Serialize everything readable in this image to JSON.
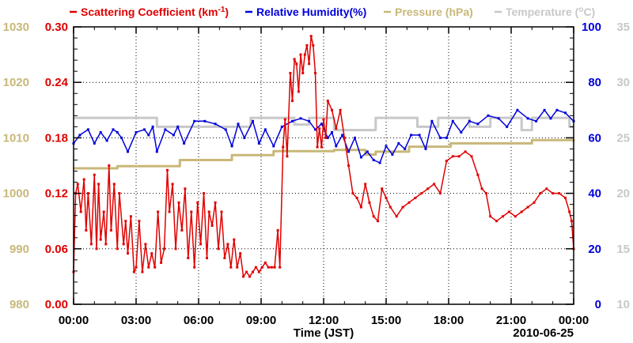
{
  "chart_data": {
    "type": "line",
    "title": "",
    "xlabel": "Time (JST)",
    "date_label": "2010-06-25",
    "x_ticks": [
      "00:00",
      "03:00",
      "06:00",
      "09:00",
      "12:00",
      "15:00",
      "18:00",
      "21:00",
      "00:00"
    ],
    "xlim_hours": [
      0,
      24
    ],
    "grid": true,
    "legend": [
      {
        "label": "Scattering Coefficient (km",
        "sup": "-1",
        "suffix": ")",
        "color": "#e00000"
      },
      {
        "label": "Relative Humidity(%)",
        "color": "#0000dd"
      },
      {
        "label": "Pressure (hPa)",
        "color": "#c8b878"
      },
      {
        "label": "Temperature (",
        "sup": "o",
        "suffix": "C)",
        "color": "#c8c8c8"
      }
    ],
    "axes": {
      "pressure": {
        "range": [
          980,
          1030
        ],
        "ticks": [
          "980",
          "990",
          "1000",
          "1010",
          "1020",
          "1030"
        ],
        "color": "#c8b878"
      },
      "scattering": {
        "range": [
          0,
          0.3
        ],
        "ticks": [
          "0.00",
          "0.06",
          "0.12",
          "0.18",
          "0.24",
          "0.30"
        ],
        "color": "#e00000"
      },
      "humidity": {
        "range": [
          0,
          100
        ],
        "ticks": [
          "0",
          "20",
          "40",
          "60",
          "80",
          "100"
        ],
        "color": "#0000dd"
      },
      "temperature": {
        "range": [
          10,
          35
        ],
        "ticks": [
          "10",
          "15",
          "20",
          "25",
          "30",
          "35"
        ],
        "color": "#c8c8c8"
      }
    },
    "series": [
      {
        "name": "Temperature",
        "axis": "temperature",
        "color": "#c8c8c8",
        "x": [
          0,
          1.0,
          3.0,
          3.8,
          4.0,
          8.0,
          8.5,
          10.3,
          10.6,
          11.3,
          12.2,
          12.5,
          14.5,
          15.5,
          16.5,
          17.5,
          18.0,
          19.0,
          20.0,
          20.5,
          21.5,
          22.0,
          23.8,
          24
        ],
        "y": [
          26.8,
          26.8,
          26.8,
          26.8,
          26.0,
          26.0,
          26.8,
          26.8,
          26.2,
          26.8,
          26.8,
          25.7,
          26.8,
          26.8,
          26.0,
          26.8,
          26.8,
          26.0,
          26.8,
          26.8,
          25.7,
          26.8,
          26.0,
          26.0
        ]
      },
      {
        "name": "Pressure",
        "axis": "pressure",
        "color": "#c8b878",
        "x": [
          0,
          2.0,
          2.1,
          5.0,
          5.1,
          7.5,
          7.6,
          9.5,
          9.6,
          11.0,
          12.5,
          14.0,
          14.5,
          16.0,
          16.1,
          18.0,
          18.1,
          21.5,
          22.0,
          23.8,
          24
        ],
        "y": [
          1004.5,
          1004.5,
          1004.9,
          1004.9,
          1006.0,
          1006.0,
          1006.9,
          1006.9,
          1007.6,
          1007.6,
          1007.8,
          1007.0,
          1007.5,
          1007.5,
          1008.4,
          1008.4,
          1009.0,
          1009.0,
          1009.6,
          1009.6,
          1009.3
        ]
      },
      {
        "name": "Relative Humidity",
        "axis": "humidity",
        "color": "#0000dd",
        "x": [
          0,
          0.3,
          0.7,
          1.0,
          1.3,
          1.6,
          1.9,
          2.1,
          2.3,
          2.6,
          3.0,
          3.4,
          3.6,
          3.8,
          4.0,
          4.4,
          4.8,
          5.0,
          5.3,
          5.8,
          6.3,
          6.8,
          7.3,
          7.6,
          7.9,
          8.2,
          8.6,
          8.9,
          9.2,
          9.6,
          10.0,
          10.5,
          10.9,
          11.3,
          11.6,
          11.9,
          12.2,
          12.4,
          12.6,
          12.9,
          13.2,
          13.5,
          13.8,
          14.1,
          14.4,
          14.7,
          15.0,
          15.3,
          15.6,
          15.9,
          16.2,
          16.6,
          16.9,
          17.2,
          17.6,
          17.9,
          18.2,
          18.6,
          19.0,
          19.4,
          19.9,
          20.4,
          20.8,
          21.3,
          21.8,
          22.2,
          22.6,
          22.9,
          23.2,
          23.6,
          24
        ],
        "y": [
          58,
          61,
          63,
          58,
          62,
          59,
          63,
          62,
          60,
          55,
          62,
          63,
          61,
          64,
          55,
          63,
          61,
          64,
          58,
          66,
          66,
          65,
          63,
          57,
          65,
          60,
          66,
          58,
          63,
          57,
          64,
          66,
          67,
          66,
          63,
          65,
          60,
          62,
          57,
          61,
          55,
          60,
          53,
          55,
          52,
          51,
          57,
          54,
          58,
          56,
          61,
          61,
          56,
          66,
          60,
          60,
          66,
          62,
          66,
          65,
          68,
          67,
          64,
          70,
          67,
          66,
          70,
          67,
          70,
          69,
          66
        ]
      },
      {
        "name": "Scattering Coefficient",
        "axis": "scattering",
        "color": "#e00000",
        "x": [
          0,
          0.1,
          0.2,
          0.35,
          0.5,
          0.6,
          0.7,
          0.85,
          1.0,
          1.1,
          1.2,
          1.3,
          1.45,
          1.55,
          1.7,
          1.8,
          1.95,
          2.1,
          2.2,
          2.4,
          2.5,
          2.6,
          2.75,
          2.9,
          3.0,
          3.15,
          3.3,
          3.45,
          3.6,
          3.75,
          3.9,
          4.05,
          4.2,
          4.35,
          4.5,
          4.6,
          4.75,
          4.9,
          5.05,
          5.2,
          5.35,
          5.5,
          5.65,
          5.8,
          5.95,
          6.1,
          6.25,
          6.4,
          6.5,
          6.65,
          6.8,
          6.95,
          7.1,
          7.25,
          7.4,
          7.55,
          7.7,
          7.85,
          8.0,
          8.15,
          8.3,
          8.45,
          8.6,
          8.75,
          8.9,
          9.05,
          9.2,
          9.35,
          9.5,
          9.65,
          9.8,
          9.9,
          10.05,
          10.15,
          10.25,
          10.4,
          10.5,
          10.6,
          10.7,
          10.8,
          10.9,
          11.0,
          11.1,
          11.2,
          11.3,
          11.4,
          11.5,
          11.6,
          11.7,
          11.8,
          11.9,
          12.0,
          12.1,
          12.2,
          12.4,
          12.6,
          12.8,
          13.0,
          13.2,
          13.4,
          13.6,
          13.8,
          14.0,
          14.2,
          14.4,
          14.6,
          14.8,
          15.0,
          15.2,
          15.5,
          15.8,
          16.1,
          16.4,
          16.7,
          17.0,
          17.3,
          17.6,
          17.9,
          18.2,
          18.5,
          18.8,
          19.1,
          19.4,
          19.6,
          19.8,
          20.0,
          20.3,
          20.6,
          20.9,
          21.2,
          21.5,
          21.8,
          22.1,
          22.4,
          22.7,
          23.0,
          23.3,
          23.6,
          23.8,
          23.9,
          24
        ],
        "y": [
          0.035,
          0.12,
          0.13,
          0.1,
          0.135,
          0.08,
          0.12,
          0.065,
          0.14,
          0.06,
          0.13,
          0.07,
          0.1,
          0.065,
          0.15,
          0.08,
          0.13,
          0.06,
          0.12,
          0.065,
          0.09,
          0.055,
          0.095,
          0.035,
          0.04,
          0.09,
          0.035,
          0.065,
          0.04,
          0.055,
          0.04,
          0.1,
          0.045,
          0.06,
          0.145,
          0.1,
          0.13,
          0.06,
          0.11,
          0.08,
          0.125,
          0.05,
          0.1,
          0.04,
          0.11,
          0.065,
          0.12,
          0.05,
          0.1,
          0.085,
          0.11,
          0.06,
          0.1,
          0.05,
          0.065,
          0.04,
          0.07,
          0.04,
          0.055,
          0.03,
          0.035,
          0.03,
          0.035,
          0.04,
          0.035,
          0.04,
          0.045,
          0.04,
          0.04,
          0.04,
          0.08,
          0.04,
          0.17,
          0.2,
          0.16,
          0.25,
          0.22,
          0.265,
          0.26,
          0.23,
          0.27,
          0.25,
          0.27,
          0.28,
          0.26,
          0.29,
          0.28,
          0.25,
          0.17,
          0.19,
          0.17,
          0.2,
          0.18,
          0.22,
          0.21,
          0.19,
          0.21,
          0.18,
          0.15,
          0.12,
          0.115,
          0.105,
          0.13,
          0.11,
          0.095,
          0.09,
          0.125,
          0.115,
          0.105,
          0.095,
          0.105,
          0.11,
          0.115,
          0.12,
          0.125,
          0.13,
          0.12,
          0.155,
          0.16,
          0.16,
          0.165,
          0.16,
          0.14,
          0.125,
          0.12,
          0.095,
          0.09,
          0.095,
          0.1,
          0.095,
          0.1,
          0.105,
          0.11,
          0.12,
          0.125,
          0.12,
          0.12,
          0.115,
          0.1,
          0.09,
          0.06
        ]
      }
    ]
  }
}
